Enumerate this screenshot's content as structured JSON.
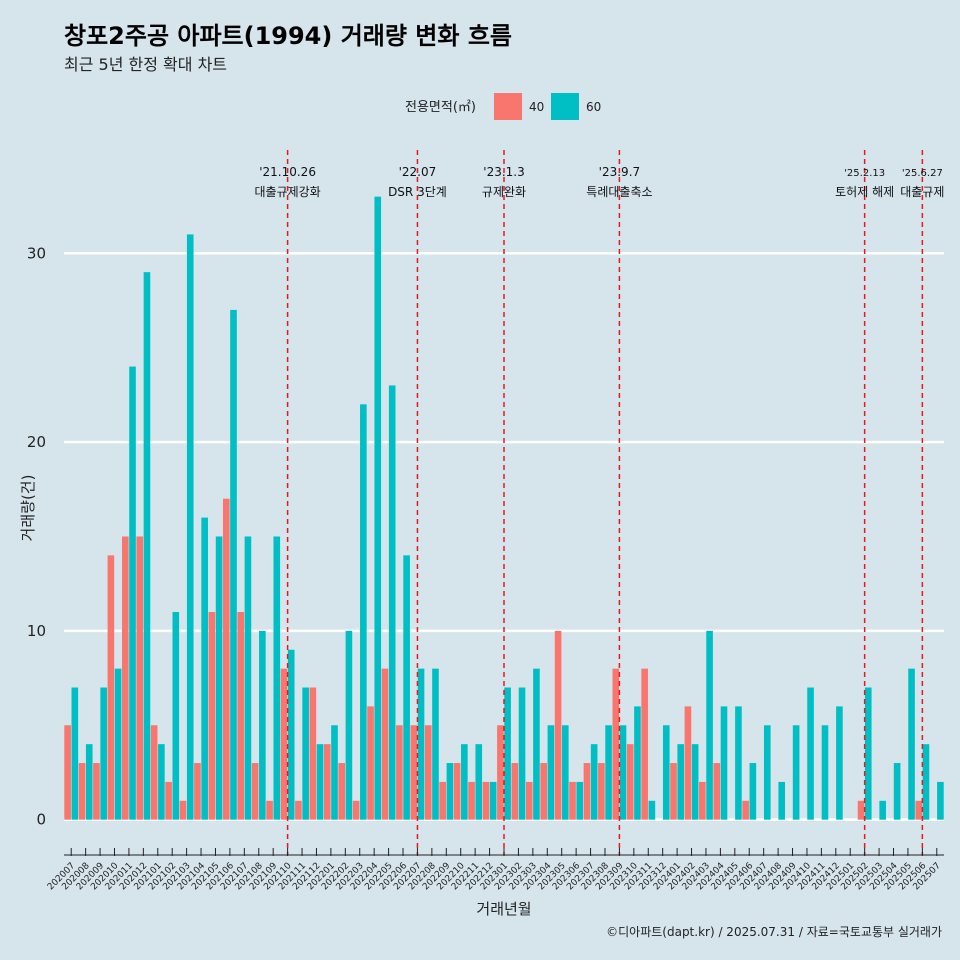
{
  "chart_data": {
    "type": "bar",
    "title": "창포2주공 아파트(1994) 거래량 변화 흐름",
    "subtitle": "최근 5년 한정 확대 차트",
    "xlabel": "거래년월",
    "ylabel": "거래량(건)",
    "ylim": [
      -1.5,
      36
    ],
    "yticks": [
      0,
      10,
      20,
      30
    ],
    "legend": {
      "title": "전용면적(㎡)",
      "position": "top",
      "items": [
        {
          "name": "40",
          "color": "#f8766d"
        },
        {
          "name": "60",
          "color": "#00bfc4"
        }
      ]
    },
    "categories": [
      "202007",
      "202008",
      "202009",
      "202010",
      "202011",
      "202012",
      "202101",
      "202102",
      "202103",
      "202104",
      "202105",
      "202106",
      "202107",
      "202108",
      "202109",
      "202110",
      "202111",
      "202112",
      "202201",
      "202202",
      "202203",
      "202204",
      "202205",
      "202206",
      "202207",
      "202208",
      "202209",
      "202210",
      "202211",
      "202212",
      "202301",
      "202302",
      "202303",
      "202304",
      "202305",
      "202306",
      "202307",
      "202308",
      "202309",
      "202310",
      "202311",
      "202312",
      "202401",
      "202402",
      "202403",
      "202404",
      "202405",
      "202406",
      "202407",
      "202408",
      "202409",
      "202410",
      "202411",
      "202412",
      "202501",
      "202502",
      "202503",
      "202504",
      "202505",
      "202506",
      "202507"
    ],
    "series": [
      {
        "name": "40",
        "color": "#f8766d",
        "values": [
          5,
          3,
          3,
          14,
          15,
          15,
          5,
          2,
          1,
          3,
          11,
          17,
          11,
          3,
          1,
          8,
          1,
          7,
          4,
          3,
          1,
          6,
          8,
          5,
          5,
          5,
          2,
          3,
          2,
          2,
          5,
          3,
          2,
          3,
          10,
          2,
          3,
          3,
          8,
          4,
          8,
          0,
          3,
          6,
          2,
          3,
          0,
          1,
          0,
          0,
          0,
          0,
          0,
          0,
          0,
          1,
          0,
          0,
          0,
          1,
          0
        ]
      },
      {
        "name": "60",
        "color": "#00bfc4",
        "values": [
          7,
          4,
          7,
          8,
          24,
          29,
          4,
          11,
          31,
          16,
          15,
          27,
          15,
          10,
          15,
          9,
          7,
          4,
          5,
          10,
          22,
          33,
          23,
          14,
          8,
          8,
          3,
          4,
          4,
          2,
          7,
          7,
          8,
          5,
          5,
          2,
          4,
          5,
          5,
          6,
          1,
          5,
          4,
          4,
          10,
          6,
          6,
          3,
          5,
          2,
          5,
          7,
          5,
          6,
          0,
          7,
          1,
          3,
          8,
          4,
          2
        ]
      }
    ],
    "annotations": [
      {
        "index": 15,
        "date": "'21.10.26",
        "text": "대출규제강화"
      },
      {
        "index": 24,
        "date": "'22.07",
        "text": "DSR 3단계"
      },
      {
        "index": 30,
        "date": "'23.1.3",
        "text": "규제완화"
      },
      {
        "index": 38,
        "date": "'23.9.7",
        "text": "특례대출축소"
      },
      {
        "index": 55,
        "date": "'25.2.13",
        "text": "토허제 해제"
      },
      {
        "index": 59,
        "date": "'25.6.27",
        "text": "대출규제"
      }
    ],
    "caption": "©디아파트(dapt.kr) / 2025.07.31 / 자료=국토교통부 실거래가"
  }
}
